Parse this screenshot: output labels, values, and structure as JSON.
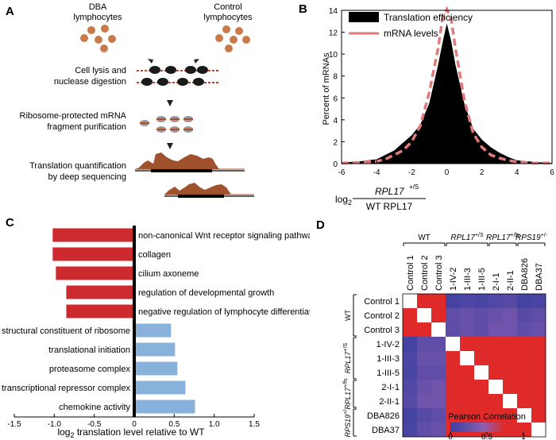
{
  "panel_a": {
    "letter": "A",
    "group1_lines": [
      "DBA",
      "lymphocytes"
    ],
    "group2_lines": [
      "Control",
      "lymphocytes"
    ],
    "step1_lines": [
      "Cell lysis and",
      "nuclease digestion"
    ],
    "step2_lines": [
      "Ribosome-protected mRNA",
      "fragment purification"
    ],
    "step3_lines": [
      "Translation quantification",
      "by deep sequencing"
    ],
    "colors": {
      "cell": "#c87a4a",
      "ribosome": "#1a1a1a",
      "mrna": "#b54a2a",
      "coverage": "#a0522d"
    }
  },
  "panel_b": {
    "letter": "B",
    "xlabel_prefix": "log",
    "xlabel_sub": "2",
    "xlabel_numer_gene": "RPL17",
    "xlabel_numer_sup": "+/S",
    "xlabel_denom": "WT RPL17",
    "colors": {
      "translation": "#000000",
      "mrna": "#e07b7b"
    }
  },
  "panel_c": {
    "letter": "C",
    "xlabel_prefix": "log",
    "xlabel_sub": "2",
    "xlabel_rest": " translation level relative to WT",
    "colors": {
      "down": "#cc2a2f",
      "up": "#88b2dc"
    }
  },
  "panel_d": {
    "letter": "D",
    "groups": [
      "WT",
      "RPL17",
      "RPL17",
      "RPS19"
    ],
    "group_sups": [
      "",
      "+/S",
      "+/fs",
      "+/-"
    ],
    "legend_title": "Pearson Correlation",
    "legend_ticks": [
      "0",
      "0.5",
      "1"
    ],
    "colors": {
      "low": "#3b3fa0",
      "mid": "#8b5fb0",
      "high": "#e02a2a",
      "diag": "#ffffff"
    }
  },
  "chart_data": [
    {
      "type": "area",
      "panel": "B",
      "ylabel": "Percent of mRNAs",
      "xlim": [
        -6,
        6
      ],
      "ylim": [
        0,
        14
      ],
      "xticks": [
        "-6",
        "-4",
        "-2",
        "0",
        "2",
        "4",
        "6"
      ],
      "yticks": [
        "0",
        "2",
        "4",
        "6",
        "8",
        "10",
        "12",
        "14"
      ],
      "legend_position": "top-left",
      "series": [
        {
          "name": "Translation efficiency",
          "style": "filled",
          "x": [
            -6,
            -5,
            -4,
            -3.5,
            -3,
            -2.5,
            -2,
            -1.5,
            -1,
            -0.5,
            -0.25,
            0,
            0.25,
            0.5,
            1,
            1.5,
            2,
            2.5,
            3,
            3.5,
            4,
            5,
            6
          ],
          "y": [
            0.1,
            0.2,
            0.4,
            0.8,
            1.2,
            1.9,
            2.6,
            3.6,
            5.5,
            9.0,
            11.0,
            12.8,
            11.2,
            9.0,
            5.5,
            3.2,
            2.2,
            1.5,
            1.0,
            0.6,
            0.3,
            0.15,
            0.05
          ]
        },
        {
          "name": "mRNA levels",
          "style": "dashed",
          "x": [
            -6,
            -5,
            -4,
            -3.5,
            -3,
            -2.5,
            -2,
            -1.5,
            -1,
            -0.5,
            -0.25,
            0,
            0.25,
            0.5,
            1,
            1.5,
            2,
            2.5,
            3,
            3.5,
            4,
            5,
            6
          ],
          "y": [
            0.05,
            0.1,
            0.2,
            0.4,
            0.8,
            1.2,
            2.0,
            3.5,
            6.5,
            10.5,
            13.2,
            14.1,
            13.2,
            10.5,
            5.8,
            2.8,
            1.5,
            0.8,
            0.5,
            0.3,
            0.15,
            0.05,
            0.05
          ]
        }
      ]
    },
    {
      "type": "bar",
      "panel": "C",
      "orientation": "horizontal",
      "categories": [
        "non-canonical Wnt receptor signaling pathway",
        "collagen",
        "cilium axoneme",
        "regulation of developmental growth",
        "negative regulation of lymphocyte differentiation",
        "structural constituent of ribosome",
        "translational initiation",
        "proteasome complex",
        "transcriptional repressor complex",
        "chemokine activity"
      ],
      "values": [
        -1.02,
        -1.02,
        -0.98,
        -0.85,
        -0.85,
        0.46,
        0.51,
        0.54,
        0.64,
        0.76
      ],
      "xlim": [
        -1.5,
        1.5
      ],
      "xticks": [
        "-1.5",
        "-1.0",
        "-0.5",
        "0",
        "0.5",
        "1.0",
        "1.5"
      ]
    },
    {
      "type": "heatmap",
      "panel": "D",
      "labels": [
        "Control 1",
        "Control 2",
        "Control 3",
        "1-IV-2",
        "1-III-3",
        "1-III-5",
        "2-I-1",
        "2-II-1",
        "DBA826",
        "DBA37"
      ],
      "group_sizes": [
        3,
        3,
        2,
        2
      ],
      "range": [
        0,
        1
      ],
      "values": [
        [
          1.0,
          0.95,
          0.93,
          0.05,
          0.1,
          0.08,
          0.12,
          0.15,
          0.05,
          0.08
        ],
        [
          0.95,
          1.0,
          0.94,
          0.2,
          0.25,
          0.2,
          0.25,
          0.3,
          0.15,
          0.2
        ],
        [
          0.93,
          0.94,
          1.0,
          0.2,
          0.25,
          0.2,
          0.3,
          0.3,
          0.2,
          0.25
        ],
        [
          0.05,
          0.2,
          0.2,
          1.0,
          0.92,
          0.9,
          0.8,
          0.78,
          0.85,
          0.88
        ],
        [
          0.1,
          0.25,
          0.25,
          0.92,
          1.0,
          0.95,
          0.82,
          0.8,
          0.88,
          0.9
        ],
        [
          0.08,
          0.2,
          0.2,
          0.9,
          0.95,
          1.0,
          0.85,
          0.82,
          0.9,
          0.9
        ],
        [
          0.12,
          0.25,
          0.3,
          0.8,
          0.82,
          0.85,
          1.0,
          0.93,
          0.9,
          0.88
        ],
        [
          0.15,
          0.3,
          0.3,
          0.78,
          0.8,
          0.82,
          0.93,
          1.0,
          0.9,
          0.9
        ],
        [
          0.05,
          0.15,
          0.2,
          0.85,
          0.88,
          0.9,
          0.9,
          0.9,
          1.0,
          0.94
        ],
        [
          0.08,
          0.2,
          0.25,
          0.88,
          0.9,
          0.9,
          0.88,
          0.9,
          0.94,
          1.0
        ]
      ]
    }
  ]
}
